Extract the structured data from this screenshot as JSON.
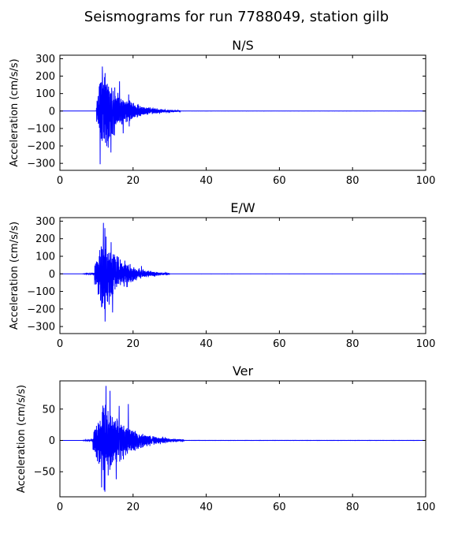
{
  "figure": {
    "title": "Seismograms for run 7788049, station gilb"
  },
  "chart_data": [
    {
      "type": "line",
      "title": "N/S",
      "xlabel": "",
      "ylabel": "Acceleration (cm/s/s)",
      "xlim": [
        0,
        100
      ],
      "ylim": [
        -340,
        320
      ],
      "xticks": [
        0,
        20,
        40,
        60,
        80,
        100
      ],
      "yticks": [
        -300,
        -200,
        -100,
        0,
        100,
        200,
        300
      ],
      "grid": false,
      "color": "#0000ff",
      "envelope": {
        "onset": 10.0,
        "peak_time": 11.8,
        "peak_amp": 260,
        "decay": 5.2,
        "end": 33,
        "precursor": 0
      },
      "extremes": [
        [
          11.6,
          255
        ],
        [
          11.0,
          -305
        ],
        [
          16.3,
          170
        ],
        [
          13.2,
          -210
        ],
        [
          18.8,
          95
        ],
        [
          14.9,
          -140
        ]
      ]
    },
    {
      "type": "line",
      "title": "E/W",
      "xlabel": "",
      "ylabel": "Acceleration (cm/s/s)",
      "xlim": [
        0,
        100
      ],
      "ylim": [
        -340,
        320
      ],
      "xticks": [
        0,
        20,
        40,
        60,
        80,
        100
      ],
      "yticks": [
        -300,
        -200,
        -100,
        0,
        100,
        200,
        300
      ],
      "grid": false,
      "color": "#0000ff",
      "envelope": {
        "onset": 9.5,
        "peak_time": 12.0,
        "peak_amp": 230,
        "decay": 5.0,
        "end": 30,
        "precursor": 8
      },
      "extremes": [
        [
          11.9,
          290
        ],
        [
          14.4,
          -220
        ],
        [
          11.4,
          -190
        ],
        [
          14.9,
          110
        ],
        [
          16.0,
          95
        ],
        [
          18.4,
          -75
        ]
      ]
    },
    {
      "type": "line",
      "title": "Ver",
      "xlabel": "",
      "ylabel": "Acceleration (cm/s/s)",
      "xlim": [
        0,
        100
      ],
      "ylim": [
        -90,
        95
      ],
      "xticks": [
        0,
        20,
        40,
        60,
        80,
        100
      ],
      "yticks": [
        -50,
        0,
        50
      ],
      "grid": false,
      "color": "#0000ff",
      "envelope": {
        "onset": 9.0,
        "peak_time": 12.5,
        "peak_amp": 65,
        "decay": 6.0,
        "end": 34,
        "precursor": 2
      },
      "extremes": [
        [
          12.6,
          87
        ],
        [
          12.3,
          -82
        ],
        [
          18.7,
          58
        ],
        [
          11.4,
          -75
        ],
        [
          15.4,
          -62
        ],
        [
          16.2,
          55
        ]
      ]
    }
  ]
}
